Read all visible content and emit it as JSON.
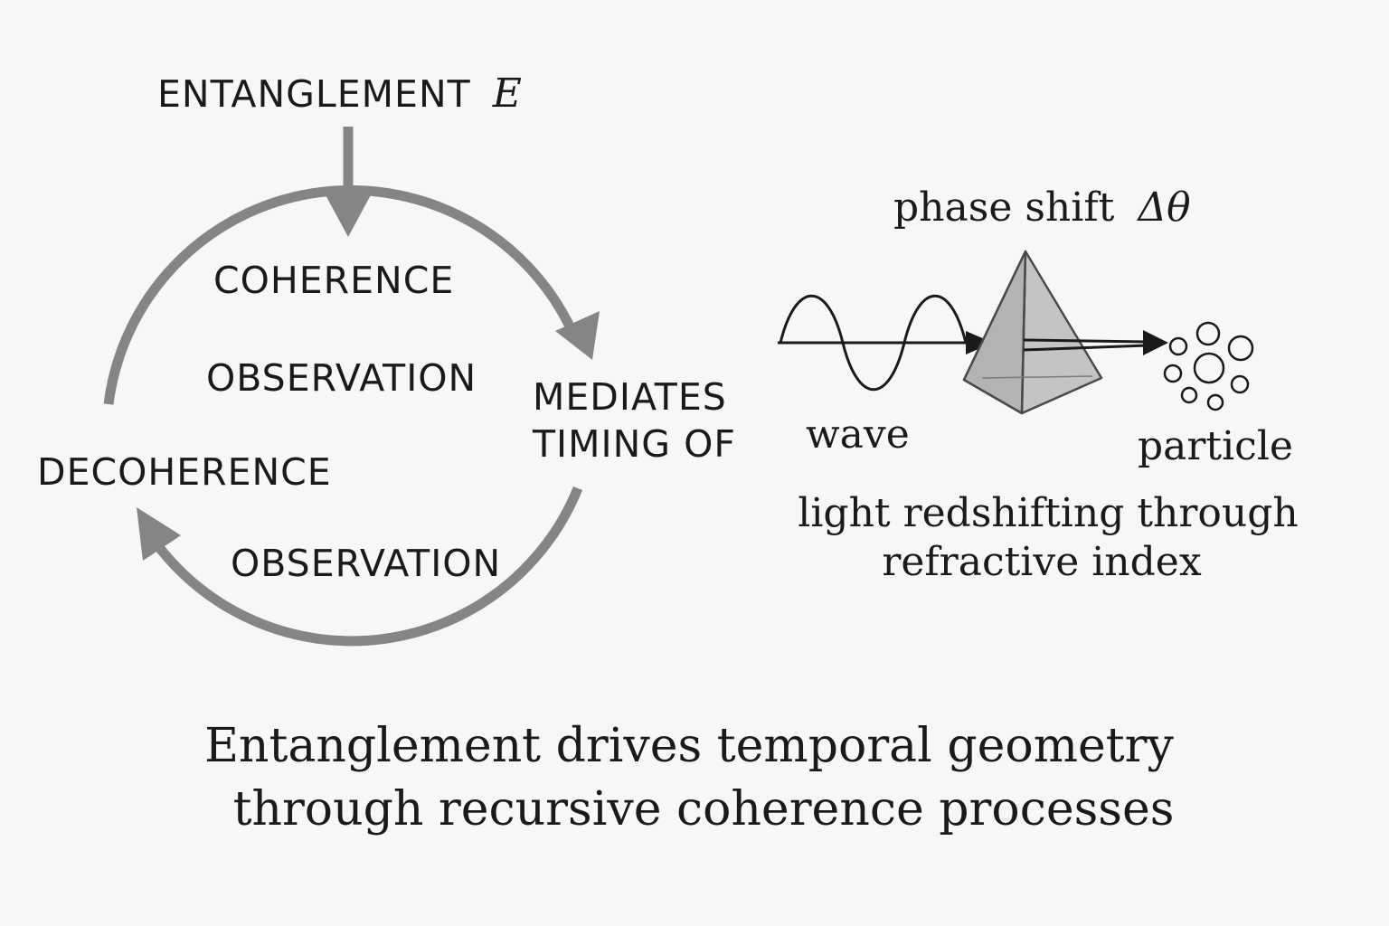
{
  "cycle": {
    "entanglement": "ENTANGLEMENT",
    "entanglement_symbol": "E",
    "coherence": "COHERENCE",
    "observation_inner": "OBSERVATION",
    "decoherence": "DECOHERENCE",
    "observation_lower": "OBSERVATION",
    "mediates_line1": "MEDIATES",
    "mediates_line2": "TIMING OF"
  },
  "wave_particle": {
    "phase_shift": "phase shift",
    "phase_symbol": "Δθ",
    "wave": "wave",
    "particle": "particle",
    "refraction_line1": "light redshifting through",
    "refraction_line2": "refractive index"
  },
  "caption": {
    "line1": "Entanglement drives temporal geometry",
    "line2": "through recursive coherence processes"
  },
  "colors": {
    "arrow_gray": "#858585",
    "text": "#1a1a1a",
    "prism_fill": "#c4c4c4",
    "background": "#f7f7f7"
  }
}
